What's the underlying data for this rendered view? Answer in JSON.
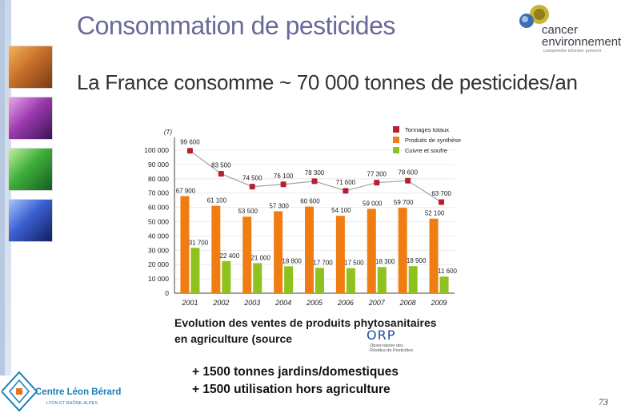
{
  "slide": {
    "title": "Consommation de pesticides",
    "subtitle": "La France consomme ~ 70 000 tonnes de pesticides/an",
    "page_number": "73",
    "notes": [
      "+ 1500 tonnes jardins/domestiques",
      "+ 1500 utilisation hors agriculture"
    ],
    "logo_ce": {
      "line1": "cancer",
      "line2": "environnement",
      "tagline": "comprendre informer prévenir"
    },
    "logo_clb": {
      "name": "Centre Léon Bérard",
      "sub": "LYON ET RHÔNE-ALPES"
    },
    "orp": {
      "name": "ORP",
      "sub": "Observatoire des Résidus de Pesticides"
    },
    "colors": {
      "total": "#b5212e",
      "synthese": "#f07d12",
      "cuivre": "#8dc21f",
      "title": "#6a6a9a"
    }
  },
  "chart_data": {
    "type": "bar",
    "title_line1": "Evolution des ventes de produits phytosanitaires",
    "title_line2": "en agriculture (source",
    "ylabel": "(T)",
    "ylim": [
      0,
      100000
    ],
    "yticks": [
      "0",
      "10 000",
      "20 000",
      "30 000",
      "40 000",
      "50 000",
      "60 000",
      "70 000",
      "80 000",
      "90 000",
      "100 000"
    ],
    "categories": [
      "2001",
      "2002",
      "2003",
      "2004",
      "2005",
      "2006",
      "2007",
      "2008",
      "2009"
    ],
    "legend_position": "top-right",
    "series": [
      {
        "name": "Tonnages totaux",
        "kind": "line",
        "values": [
          99600,
          83500,
          74500,
          76100,
          78300,
          71600,
          77300,
          78600,
          63700
        ],
        "labels": [
          "99 600",
          "83 500",
          "74 500",
          "76 100",
          "78 300",
          "71 600",
          "77 300",
          "78 600",
          "63 700"
        ]
      },
      {
        "name": "Produits de synthèse",
        "kind": "bar",
        "values": [
          67900,
          61100,
          53500,
          57300,
          60600,
          54100,
          59000,
          59700,
          52100
        ],
        "labels": [
          "67 900",
          "61 100",
          "53 500",
          "57 300",
          "60 600",
          "54 100",
          "59 000",
          "59 700",
          "52 100"
        ]
      },
      {
        "name": "Cuivre et soufre",
        "kind": "bar",
        "values": [
          31700,
          22400,
          21000,
          18800,
          17700,
          17500,
          18300,
          18900,
          11600
        ],
        "labels": [
          "31 700",
          "22 400",
          "21 000",
          "18 800",
          "17 700",
          "17 500",
          "18 300",
          "18 900",
          "11 600"
        ]
      }
    ]
  }
}
